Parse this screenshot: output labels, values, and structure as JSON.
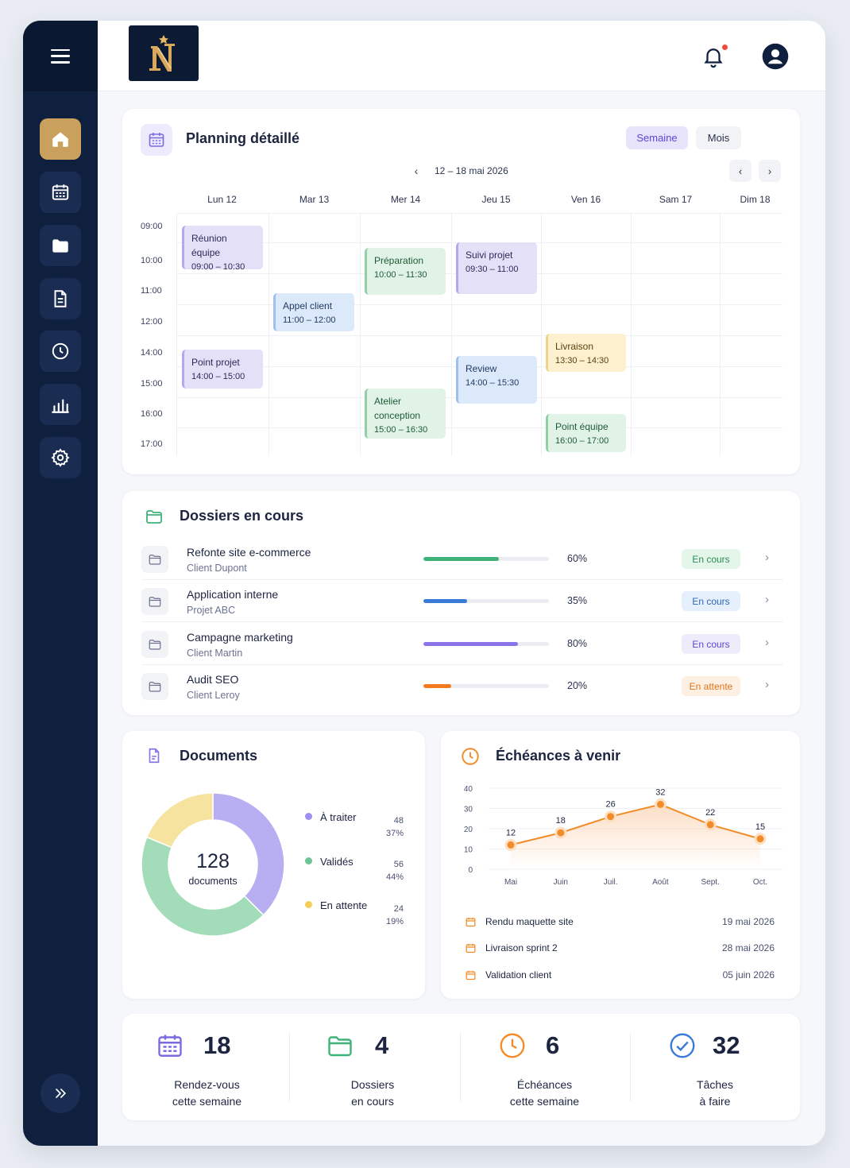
{
  "colors": {
    "sidebar": "#0f1f3e",
    "accent_gold": "#c9a05c",
    "purple": "#9b8ef0",
    "green": "#8fd3a8",
    "yellow": "#f5dd8a",
    "orange": "#f28c28",
    "blue": "#3b7bd8"
  },
  "header": {
    "logo_letter": "N",
    "bell_icon": "bell-icon",
    "notification_dot": true,
    "profile_icon": "user-circle-icon"
  },
  "sidebar": {
    "items": [
      {
        "icon": "home-icon",
        "active": true
      },
      {
        "icon": "calendar-icon"
      },
      {
        "icon": "folder-icon"
      },
      {
        "icon": "document-icon"
      },
      {
        "icon": "clock-icon"
      },
      {
        "icon": "bar-chart-icon"
      },
      {
        "icon": "gear-icon"
      }
    ],
    "expand_icon": "double-chevron-right-icon"
  },
  "planning": {
    "title": "Planning détaillé",
    "view_week": "Semaine",
    "view_month": "Mois",
    "week_label": "12 – 18 mai 2026",
    "days": [
      "Lun 12",
      "Mar 13",
      "Mer 14",
      "Jeu 15",
      "Ven 16",
      "Sam 17",
      "Dim 18"
    ],
    "hours": [
      "09:00",
      "10:00",
      "11:00",
      "12:00",
      "14:00",
      "15:00",
      "16:00",
      "17:00"
    ],
    "events": [
      {
        "title": "Réunion équipe",
        "time": "09:00 – 10:30",
        "day": "Lun 12",
        "color": "purple"
      },
      {
        "title": "Point projet",
        "time": "14:00 – 15:00",
        "day": "Lun 12",
        "color": "purple"
      },
      {
        "title": "Appel client",
        "time": "11:00 – 12:00",
        "day": "Mar 13",
        "color": "blue"
      },
      {
        "title": "Préparation",
        "time": "10:00 – 11:30",
        "day": "Mer 14",
        "color": "green"
      },
      {
        "title": "Atelier conception",
        "title_l1": "Atelier",
        "title_l2": "conception",
        "time": "15:00 – 16:30",
        "day": "Mer 14",
        "color": "green"
      },
      {
        "title": "Suivi projet",
        "time": "09:30 – 11:00",
        "day": "Jeu 15",
        "color": "purple"
      },
      {
        "title": "Review",
        "time": "14:00 – 15:30",
        "day": "Jeu 15",
        "color": "blue"
      },
      {
        "title": "Livraison",
        "time": "13:30 – 14:30",
        "day": "Ven 16",
        "color": "yellow"
      },
      {
        "title": "Point équipe",
        "time": "16:00 – 17:00",
        "day": "Ven 16",
        "color": "green"
      }
    ]
  },
  "dossiers": {
    "title": "Dossiers en cours",
    "items": [
      {
        "name": "Refonte site e-commerce",
        "client": "Client Dupont",
        "progress": 60,
        "progress_label": "60%",
        "status": "En cours",
        "color": "#3fb27a"
      },
      {
        "name": "Application interne",
        "client": "Projet ABC",
        "progress": 35,
        "progress_label": "35%",
        "status": "En cours",
        "color": "#3b7bd8"
      },
      {
        "name": "Campagne marketing",
        "client": "Client Martin",
        "progress": 80,
        "progress_label": "80%",
        "status": "En cours",
        "color": "#8b74ea"
      },
      {
        "name": "Audit SEO",
        "client": "Client Leroy",
        "progress": 20,
        "progress_label": "20%",
        "status": "En attente",
        "color": "#f47a1f"
      }
    ]
  },
  "documents": {
    "title": "Documents",
    "total": "128",
    "total_label": "documents",
    "legend": [
      {
        "label": "À traiter",
        "count": "48",
        "pct": "37%",
        "color": "#9b8ef0"
      },
      {
        "label": "Validés",
        "count": "56",
        "pct": "44%",
        "color": "#6dc592"
      },
      {
        "label": "En attente",
        "count": "24",
        "pct": "19%",
        "color": "#f5cf55"
      }
    ]
  },
  "chart_data": {
    "type": "area",
    "title": "Échéances à venir",
    "categories": [
      "Mai",
      "Juin",
      "Juil.",
      "Août",
      "Sept.",
      "Oct."
    ],
    "values": [
      12,
      18,
      26,
      32,
      22,
      15
    ],
    "ylim": [
      0,
      40
    ],
    "yticks": [
      "40",
      "30",
      "20",
      "10",
      "0"
    ],
    "value_labels": [
      "12",
      "18",
      "26",
      "32",
      "22",
      "15"
    ],
    "grid": true
  },
  "echeances": {
    "title": "Échéances à venir",
    "items": [
      {
        "label": "Rendu maquette site",
        "date": "19 mai 2026"
      },
      {
        "label": "Livraison sprint 2",
        "date": "28 mai 2026"
      },
      {
        "label": "Validation client",
        "date": "05 juin 2026"
      }
    ]
  },
  "stats": [
    {
      "value": "18",
      "line1": "Rendez-vous",
      "line2": "cette semaine",
      "icon": "calendar-icon"
    },
    {
      "value": "4",
      "line1": "Dossiers",
      "line2": "en cours",
      "icon": "folder-icon"
    },
    {
      "value": "6",
      "line1": "Échéances",
      "line2": "cette semaine",
      "icon": "clock-icon"
    },
    {
      "value": "32",
      "line1": "Tâches",
      "line2": "à faire",
      "icon": "check-circle-icon"
    }
  ]
}
